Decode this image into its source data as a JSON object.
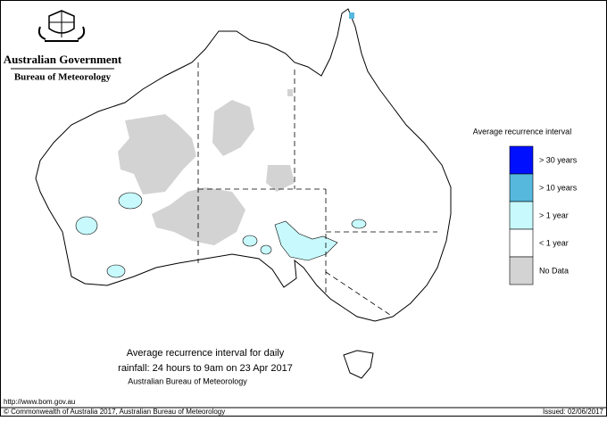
{
  "header": {
    "government": "Australian Government",
    "agency": "Bureau of Meteorology"
  },
  "legend": {
    "title": "Average recurrence interval",
    "items": [
      {
        "label": "> 30 years",
        "color": "#0010ff"
      },
      {
        "label": "> 10 years",
        "color": "#55b8dc"
      },
      {
        "label": "> 1 year",
        "color": "#c8fafd"
      },
      {
        "label": "< 1 year",
        "color": "#ffffff"
      },
      {
        "label": "No Data",
        "color": "#d3d3d3"
      }
    ]
  },
  "caption": {
    "line1": "Average recurrence interval for daily",
    "line2": "rainfall: 24 hours to 9am on 23 Apr 2017",
    "line3": "Australian Bureau of Meteorology"
  },
  "footer": {
    "url": "http://www.bom.gov.au",
    "copyright": "© Commonwealth of Australia 2017, Australian Bureau of Meteorology",
    "issued": "Issued: 02/06/2017"
  }
}
